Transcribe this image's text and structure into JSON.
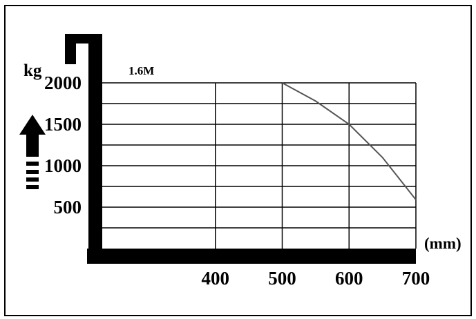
{
  "chart_data": {
    "type": "line",
    "title": "1.6M",
    "xlabel": "(mm)",
    "ylabel": "kg",
    "xlim": [
      300,
      700
    ],
    "ylim": [
      0,
      2000
    ],
    "x_tick_labels": [
      "400",
      "500",
      "600",
      "700"
    ],
    "y_tick_labels": [
      "2000",
      "1500",
      "1000",
      "500"
    ],
    "grid": true,
    "series": [
      {
        "x": [
          500,
          550,
          600,
          650,
          700
        ],
        "y": [
          2000,
          1780,
          1500,
          1100,
          590
        ]
      }
    ]
  },
  "colors": {
    "line": "#555555",
    "axis": "#000000",
    "grid": "#000000"
  },
  "icons": {
    "load_direction": "up-arrow-icon",
    "mast_symbol": "fork-bracket-icon"
  }
}
